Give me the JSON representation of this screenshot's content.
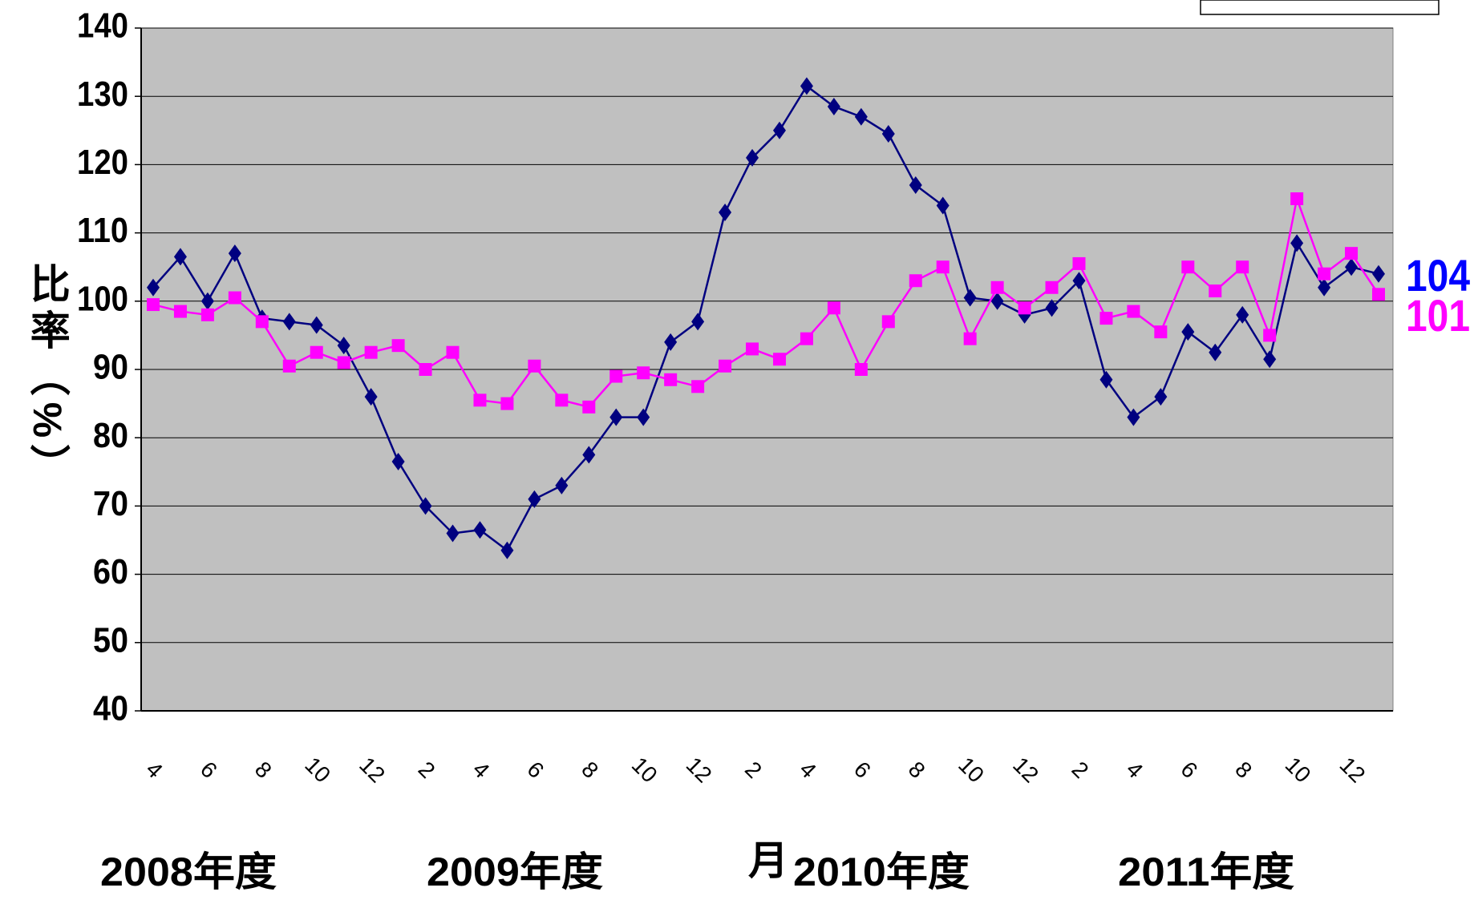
{
  "chart_data": {
    "type": "line",
    "y_label": "比率（%）",
    "x_label": "月",
    "period_labels": [
      "2008年度",
      "2009年度",
      "2010年度",
      "2011年度"
    ],
    "categories": [
      "4",
      null,
      "6",
      null,
      "8",
      null,
      "10",
      null,
      "12",
      null,
      "2",
      null,
      "4",
      null,
      "6",
      null,
      "8",
      null,
      "10",
      null,
      "12",
      null,
      "2",
      null,
      "4",
      null,
      "6",
      null,
      "8",
      null,
      "10",
      null,
      "12",
      null,
      "2",
      null,
      "4",
      null,
      "6",
      null,
      "8",
      null,
      "10",
      null,
      "12",
      null
    ],
    "series": [
      {
        "color": "#000080",
        "marker": "diamond",
        "values": [
          102,
          106.5,
          100,
          107,
          97.5,
          97,
          96.5,
          93.5,
          86,
          76.5,
          70,
          66,
          66.5,
          63.5,
          71,
          73,
          77.5,
          83,
          83,
          94,
          97,
          113,
          121,
          125,
          131.5,
          128.5,
          127,
          124.5,
          117,
          114,
          100.5,
          100,
          98,
          99,
          103,
          88.5,
          83,
          86,
          95.5,
          92.5,
          98,
          91.5,
          108.5,
          102,
          105,
          104
        ]
      },
      {
        "color": "#ff00ff",
        "marker": "square",
        "values": [
          99.5,
          98.5,
          98,
          100.5,
          97,
          90.5,
          92.5,
          91,
          92.5,
          93.5,
          90,
          92.5,
          85.5,
          85,
          90.5,
          85.5,
          84.5,
          89,
          89.5,
          88.5,
          87.5,
          90.5,
          93,
          91.5,
          94.5,
          99,
          90,
          97,
          103,
          105,
          94.5,
          102,
          99,
          102,
          105.5,
          97.5,
          98.5,
          95.5,
          105,
          101.5,
          105,
          95,
          115,
          104,
          107,
          101
        ]
      }
    ],
    "end_labels": [
      {
        "text": "104",
        "color": "#0000ff"
      },
      {
        "text": "101",
        "color": "#ff00ff"
      }
    ],
    "ylim": [
      40,
      140
    ],
    "yticks": [
      40,
      50,
      60,
      70,
      80,
      90,
      100,
      110,
      120,
      130,
      140
    ],
    "grid": true,
    "plot_background": "#c0c0c0"
  }
}
